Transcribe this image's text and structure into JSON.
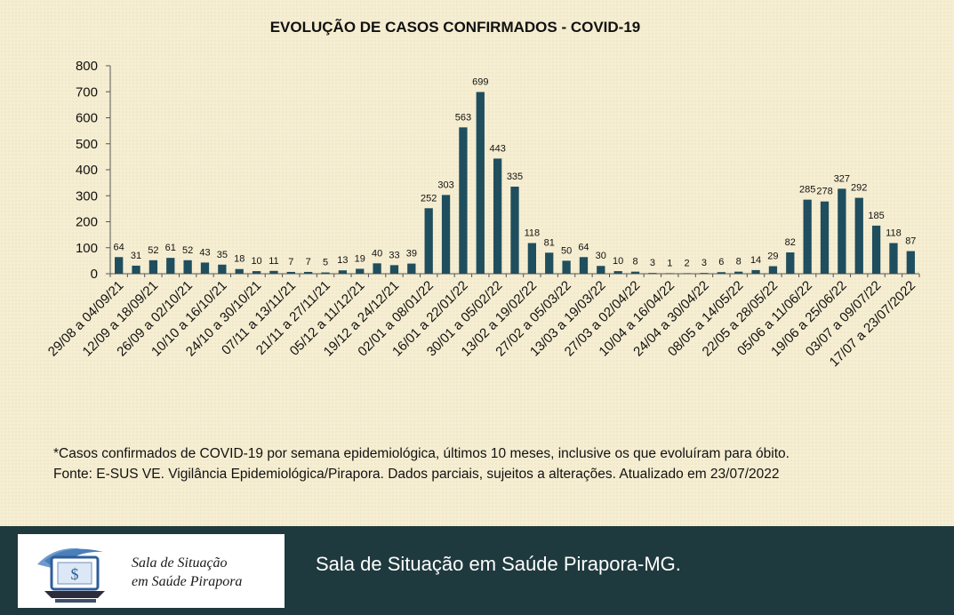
{
  "chart_data": {
    "type": "bar",
    "title": "EVOLUÇÃO DE CASOS CONFIRMADOS -  COVID-19",
    "xlabel": "",
    "ylabel": "",
    "ylim": [
      0,
      800
    ],
    "yticks": [
      "0",
      "100",
      "200",
      "300",
      "400",
      "500",
      "600",
      "700",
      "800"
    ],
    "grid": false,
    "bar_color": "#1f4e5e",
    "values": [
      64,
      31,
      52,
      61,
      52,
      43,
      35,
      18,
      10,
      11,
      7,
      7,
      5,
      13,
      19,
      40,
      33,
      39,
      252,
      303,
      563,
      699,
      443,
      335,
      118,
      81,
      50,
      64,
      30,
      10,
      8,
      3,
      1,
      2,
      3,
      6,
      8,
      14,
      29,
      82,
      285,
      278,
      327,
      292,
      185,
      118,
      87
    ],
    "tick_labels": [
      "29/08 a 04/09/21",
      "12/09 a 18/09/21",
      "26/09 a 02/10/21",
      "10/10 a 16/10/21",
      "24/10 a 30/10/21",
      "07/11 a 13/11/21",
      "21/11 a 27/11/21",
      "05/12 a 11/12/21",
      "19/12 a 24/12/21",
      "02/01 a 08/01/22",
      "16/01 a 22/01/22",
      "30/01 a 05/02/22",
      "13/02 a 19/02/22",
      "27/02 a 05/03/22",
      "13/03 a 19/03/22",
      "27/03 a 02/04/22",
      "10/04 a 16/04/22",
      "24/04 a 30/04/22",
      "08/05 a 14/05/22",
      "22/05 a 28/05/22",
      "05/06 a 11/06/22",
      "19/06 a 25/06/22",
      "03/07 a 09/07/22",
      "17/07 a 23/07/2022"
    ]
  },
  "notes": {
    "line1": "*Casos confirmados de COVID-19 por semana epidemiológica, últimos 10 meses, inclusive os que evoluíram para óbito.",
    "line2": "Fonte: E-SUS VE. Vigilância Epidemiológica/Pirapora. Dados parciais, sujeitos a alterações. Atualizado em 23/07/2022"
  },
  "footer": {
    "logo_text_line1": "Sala de Situação",
    "logo_text_line2": "em Saúde Pirapora",
    "title": "Sala de Situação em Saúde Pirapora-MG."
  },
  "colors": {
    "footer_bg": "#1f3a3e",
    "logo_blue": "#4a7fb8"
  }
}
